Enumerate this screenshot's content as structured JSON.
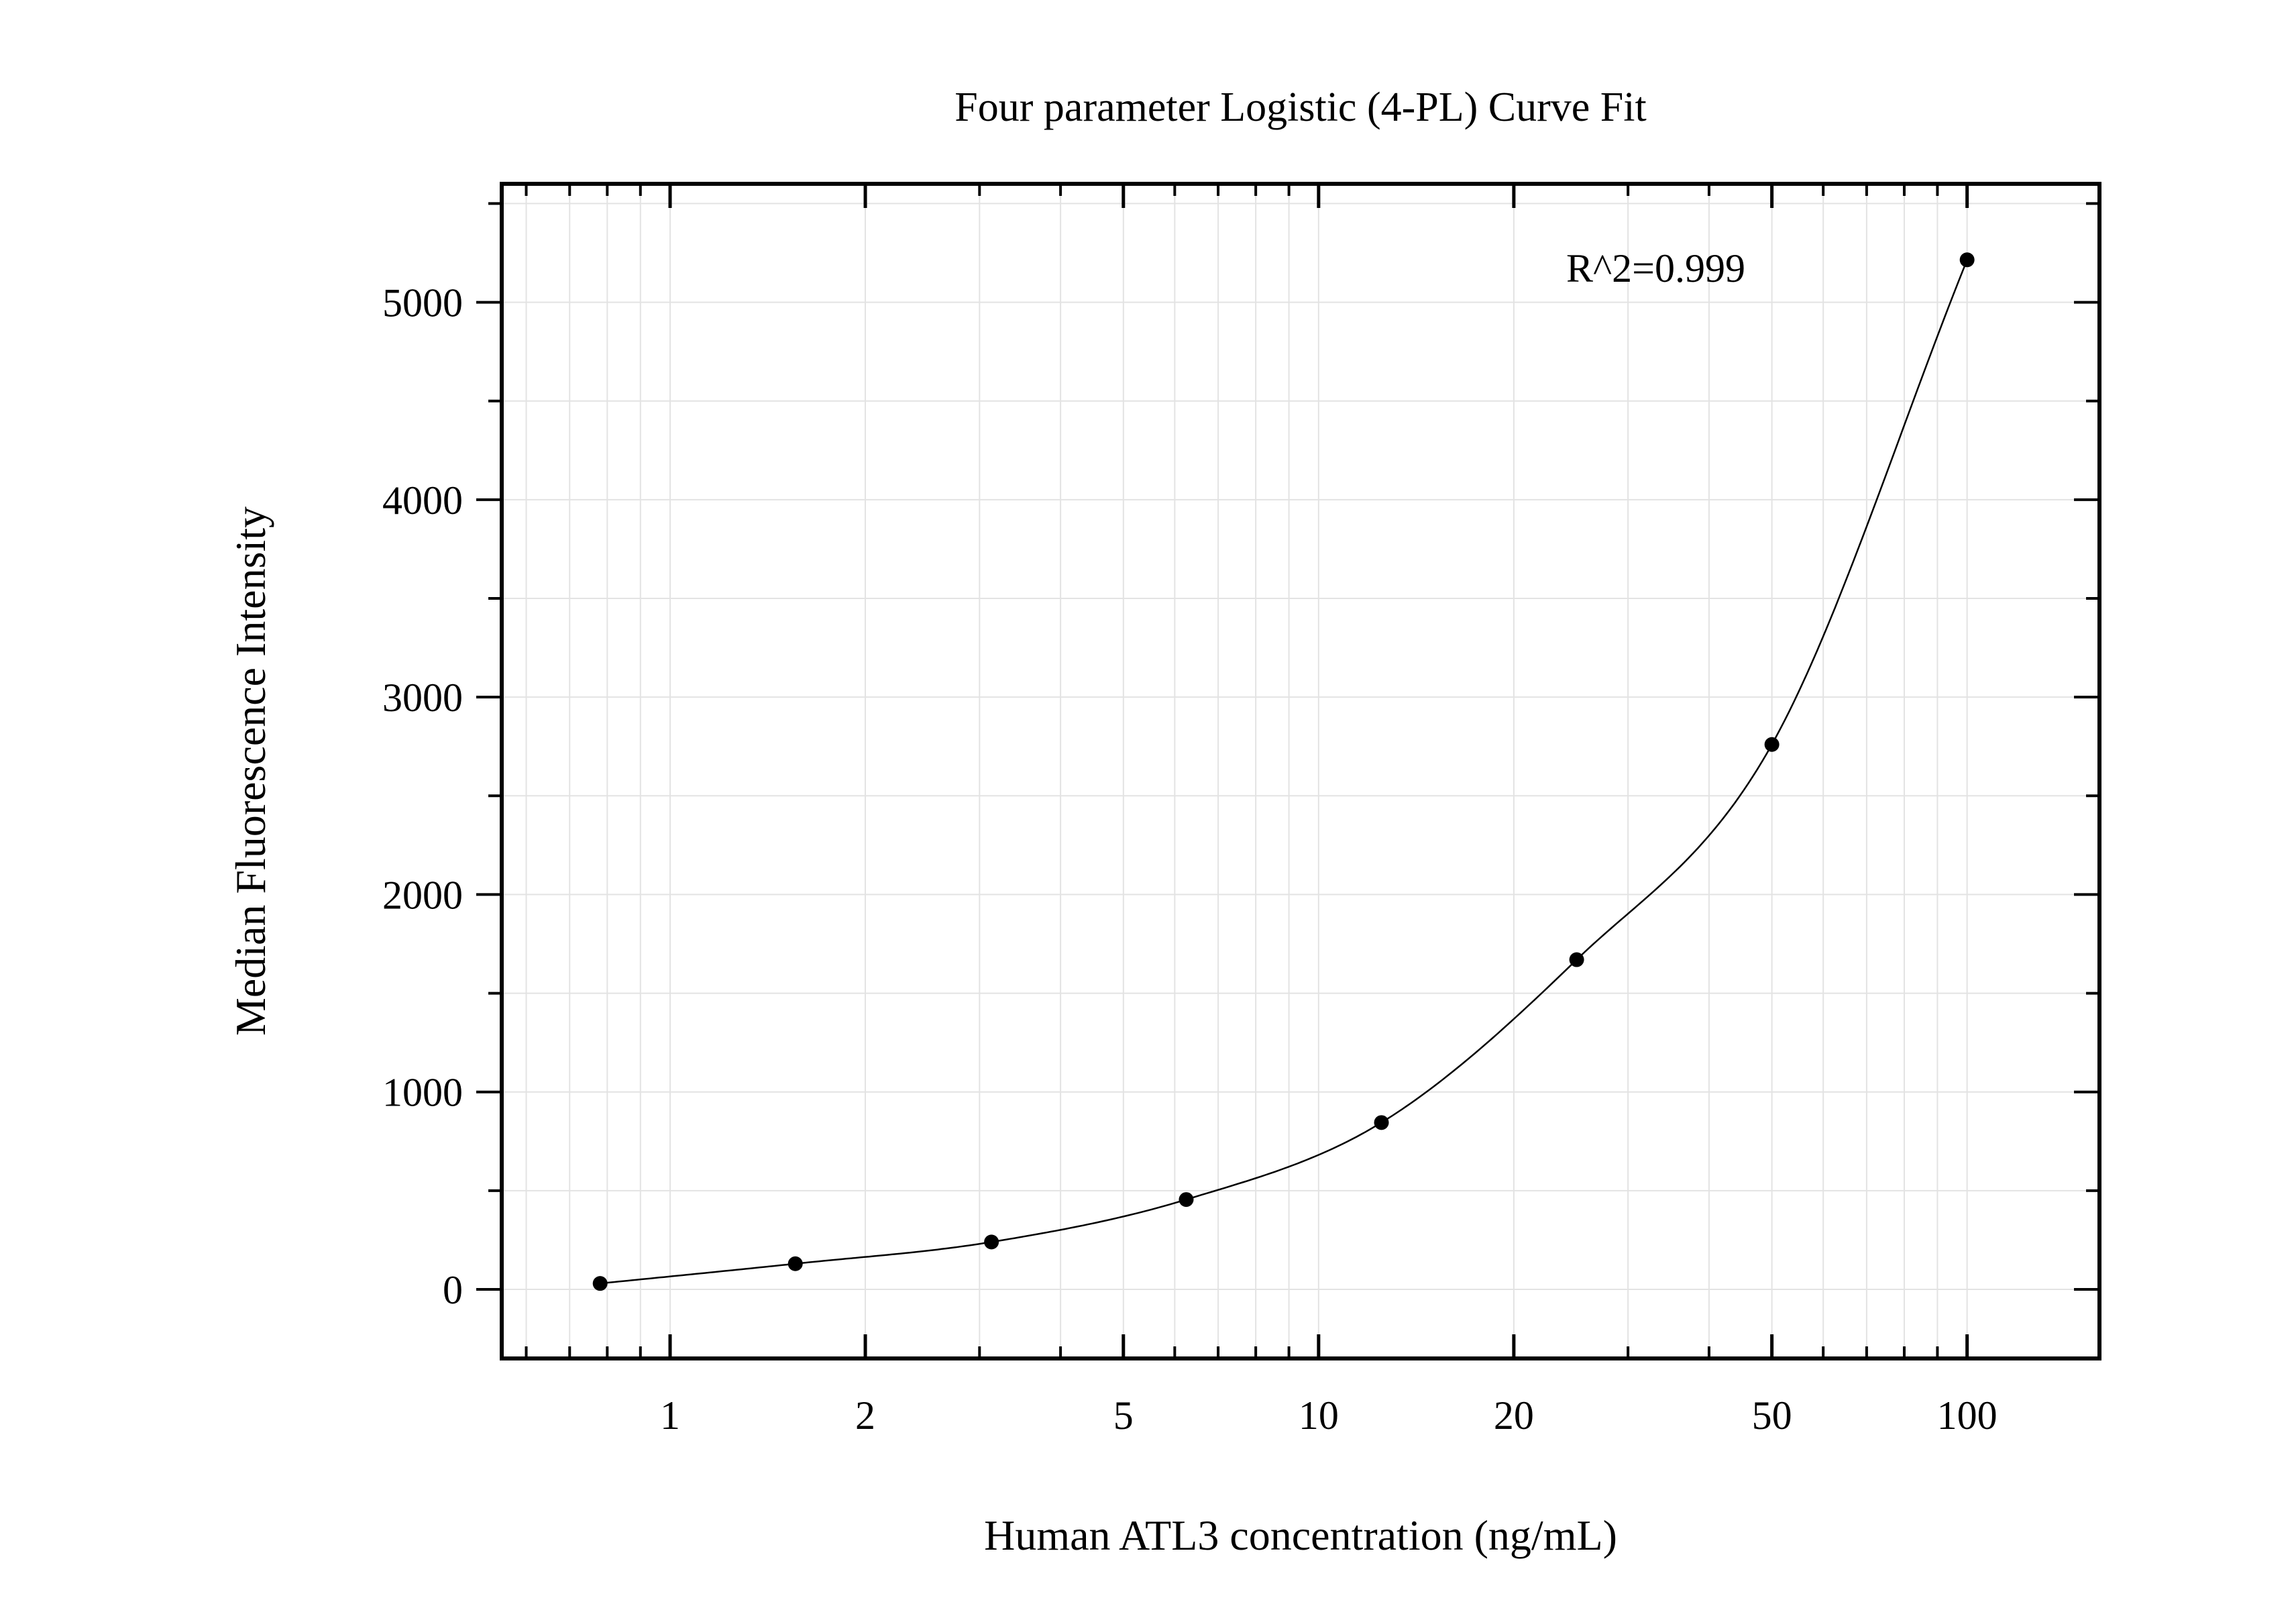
{
  "chart_data": {
    "type": "scatter",
    "title": "Four parameter Logistic (4-PL) Curve Fit",
    "xlabel": "Human ATL3 concentration (ng/mL)",
    "ylabel": "Median Fluorescence Intensity",
    "x_scale": "log",
    "xlim": [
      0.55,
      160
    ],
    "ylim": [
      -350,
      5600
    ],
    "grid": true,
    "x_ticks": [
      1,
      2,
      5,
      10,
      20,
      50,
      100
    ],
    "x_tick_labels": [
      "1",
      "2",
      "5",
      "10",
      "20",
      "50",
      "100"
    ],
    "y_ticks": [
      0,
      1000,
      2000,
      3000,
      4000,
      5000
    ],
    "y_tick_labels": [
      "0",
      "1000",
      "2000",
      "3000",
      "4000",
      "5000"
    ],
    "series": [
      {
        "kind": "points",
        "x": [
          0.78,
          1.56,
          3.13,
          6.25,
          12.5,
          25,
          50,
          100
        ],
        "y": [
          30,
          130,
          240,
          455,
          845,
          1670,
          2760,
          5215
        ]
      },
      {
        "kind": "fit-curve",
        "model": "4-PL",
        "x_range": [
          0.78,
          100
        ]
      }
    ],
    "annotations": [
      {
        "text": "R^2=0.999"
      }
    ],
    "colors": {
      "points": "#000000",
      "curve": "#000000",
      "grid": "#e3e3e3",
      "frame": "#000000"
    }
  }
}
